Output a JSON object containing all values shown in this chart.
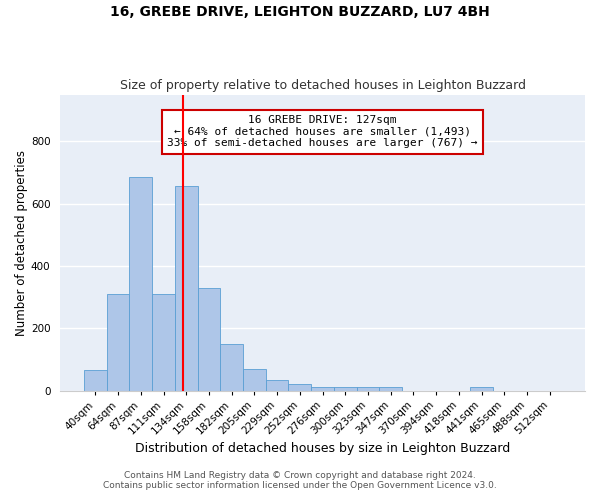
{
  "title1": "16, GREBE DRIVE, LEIGHTON BUZZARD, LU7 4BH",
  "title2": "Size of property relative to detached houses in Leighton Buzzard",
  "xlabel": "Distribution of detached houses by size in Leighton Buzzard",
  "ylabel": "Number of detached properties",
  "categories": [
    "40sqm",
    "64sqm",
    "87sqm",
    "111sqm",
    "134sqm",
    "158sqm",
    "182sqm",
    "205sqm",
    "229sqm",
    "252sqm",
    "276sqm",
    "300sqm",
    "323sqm",
    "347sqm",
    "370sqm",
    "394sqm",
    "418sqm",
    "441sqm",
    "465sqm",
    "488sqm",
    "512sqm"
  ],
  "values": [
    65,
    310,
    685,
    310,
    655,
    330,
    150,
    68,
    35,
    20,
    12,
    12,
    10,
    10,
    0,
    0,
    0,
    10,
    0,
    0,
    0
  ],
  "bar_color": "#aec6e8",
  "bar_edge_color": "#5a9fd4",
  "annotation_text": "16 GREBE DRIVE: 127sqm\n← 64% of detached houses are smaller (1,493)\n33% of semi-detached houses are larger (767) →",
  "annotation_box_color": "#ffffff",
  "annotation_box_edge": "#cc0000",
  "ylim": [
    0,
    950
  ],
  "background_color": "#e8eef7",
  "grid_color": "#ffffff",
  "footer1": "Contains HM Land Registry data © Crown copyright and database right 2024.",
  "footer2": "Contains public sector information licensed under the Open Government Licence v3.0.",
  "title1_fontsize": 10,
  "title2_fontsize": 9,
  "tick_fontsize": 7.5,
  "ylabel_fontsize": 8.5,
  "xlabel_fontsize": 9,
  "footer_fontsize": 6.5
}
